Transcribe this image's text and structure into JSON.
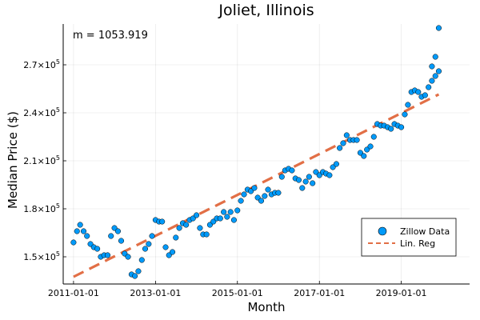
{
  "chart_data": {
    "type": "scatter",
    "title": "Joliet, Illinois",
    "xlabel": "Month",
    "ylabel": "Median Price ($)",
    "annotation": "m = 1053.919",
    "x_ticks": [
      "2011-01-01",
      "2013-01-01",
      "2015-01-01",
      "2017-01-01",
      "2019-01-01"
    ],
    "y_ticks": [
      {
        "value": 150000,
        "base": "1.5×10",
        "exp": "5"
      },
      {
        "value": 180000,
        "base": "1.8×10",
        "exp": "5"
      },
      {
        "value": 210000,
        "base": "2.1×10",
        "exp": "5"
      },
      {
        "value": 240000,
        "base": "2.4×10",
        "exp": "5"
      },
      {
        "value": 270000,
        "base": "2.7×10",
        "exp": "5"
      }
    ],
    "xlim": [
      "2010-10-01",
      "2020-09-01"
    ],
    "ylim": [
      133000,
      295500
    ],
    "grid": true,
    "legend_position": "bottom-right",
    "colors": {
      "scatter": "#009af9",
      "regression": "#e26f46"
    },
    "series": [
      {
        "name": "Zillow Data",
        "kind": "scatter",
        "x": [
          "2011-01-01",
          "2011-02-01",
          "2011-03-01",
          "2011-04-01",
          "2011-05-01",
          "2011-06-01",
          "2011-07-01",
          "2011-08-01",
          "2011-09-01",
          "2011-10-01",
          "2011-11-01",
          "2011-12-01",
          "2012-01-01",
          "2012-02-01",
          "2012-03-01",
          "2012-04-01",
          "2012-05-01",
          "2012-06-01",
          "2012-07-01",
          "2012-08-01",
          "2012-09-01",
          "2012-10-01",
          "2012-11-01",
          "2012-12-01",
          "2013-01-01",
          "2013-02-01",
          "2013-03-01",
          "2013-04-01",
          "2013-05-01",
          "2013-06-01",
          "2013-07-01",
          "2013-08-01",
          "2013-09-01",
          "2013-10-01",
          "2013-11-01",
          "2013-12-01",
          "2014-01-01",
          "2014-02-01",
          "2014-03-01",
          "2014-04-01",
          "2014-05-01",
          "2014-06-01",
          "2014-07-01",
          "2014-08-01",
          "2014-09-01",
          "2014-10-01",
          "2014-11-01",
          "2014-12-01",
          "2015-01-01",
          "2015-02-01",
          "2015-03-01",
          "2015-04-01",
          "2015-05-01",
          "2015-06-01",
          "2015-07-01",
          "2015-08-01",
          "2015-09-01",
          "2015-10-01",
          "2015-11-01",
          "2015-12-01",
          "2016-01-01",
          "2016-02-01",
          "2016-03-01",
          "2016-04-01",
          "2016-05-01",
          "2016-06-01",
          "2016-07-01",
          "2016-08-01",
          "2016-09-01",
          "2016-10-01",
          "2016-11-01",
          "2016-12-01",
          "2017-01-01",
          "2017-02-01",
          "2017-03-01",
          "2017-04-01",
          "2017-05-01",
          "2017-06-01",
          "2017-07-01",
          "2017-08-01",
          "2017-09-01",
          "2017-10-01",
          "2017-11-01",
          "2017-12-01",
          "2018-01-01",
          "2018-02-01",
          "2018-03-01",
          "2018-04-01",
          "2018-05-01",
          "2018-06-01",
          "2018-07-01",
          "2018-08-01",
          "2018-09-01",
          "2018-10-01",
          "2018-11-01",
          "2018-12-01",
          "2019-01-01",
          "2019-02-01",
          "2019-03-01",
          "2019-04-01",
          "2019-05-01",
          "2019-06-01",
          "2019-07-01",
          "2019-08-01",
          "2019-09-01",
          "2019-10-01",
          "2019-11-01",
          "2019-12-01"
        ],
        "y": [
          159000,
          166000,
          170000,
          166000,
          163000,
          158000,
          156000,
          155000,
          150000,
          151000,
          151000,
          163000,
          168000,
          166000,
          160000,
          152000,
          150000,
          139000,
          138000,
          141000,
          148000,
          155000,
          158000,
          163000,
          173000,
          172000,
          172000,
          156000,
          151000,
          153000,
          162000,
          168000,
          171000,
          170000,
          173000,
          174000,
          176000,
          168000,
          164000,
          164000,
          170000,
          172000,
          174000,
          174000,
          178000,
          175000,
          178000,
          173000,
          179000,
          185000,
          189000,
          192000,
          191000,
          193000,
          187000,
          185000,
          188000,
          192000,
          189000,
          190000,
          190000,
          200000,
          204000,
          205000,
          204000,
          199000,
          198000,
          193000,
          197000,
          200000,
          196000,
          203000,
          201000,
          203000,
          202000,
          201000,
          206000,
          208000,
          218000,
          221000,
          226000,
          223000,
          223000,
          223000,
          215000,
          213000,
          217000,
          219000,
          225000,
          233000,
          232000,
          232000,
          231000,
          230000,
          233000,
          232000,
          231000,
          239000,
          245000,
          253000,
          254000,
          253000,
          250000,
          251000,
          256000,
          260000,
          263000,
          266000
        ],
        "extra_points": [
          {
            "x": "2019-10-01",
            "y": 269000
          },
          {
            "x": "2019-11-01",
            "y": 275000
          },
          {
            "x": "2019-12-01",
            "y": 293000
          }
        ]
      },
      {
        "name": "Lin. Reg",
        "kind": "line",
        "style": "dashed",
        "x": [
          "2011-01-01",
          "2019-12-01"
        ],
        "y": [
          137500,
          251500
        ]
      }
    ]
  }
}
